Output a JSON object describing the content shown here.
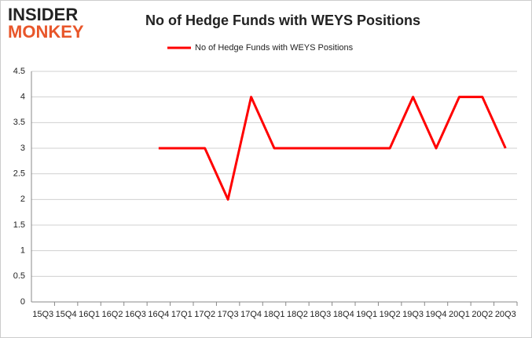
{
  "logo": {
    "line1": "INSIDER",
    "line2": "MONKEY"
  },
  "chart_data": {
    "type": "line",
    "title": "No of Hedge Funds with WEYS Positions",
    "categories": [
      "15Q3",
      "15Q4",
      "16Q1",
      "16Q2",
      "16Q3",
      "16Q4",
      "17Q1",
      "17Q2",
      "17Q3",
      "17Q4",
      "18Q1",
      "18Q2",
      "18Q3",
      "18Q4",
      "19Q1",
      "19Q2",
      "19Q3",
      "19Q4",
      "20Q1",
      "20Q2",
      "20Q3"
    ],
    "series": [
      {
        "name": "No of Hedge Funds with WEYS Positions",
        "color": "#ff0000",
        "values": [
          null,
          null,
          null,
          null,
          null,
          3,
          3,
          3,
          2,
          4,
          3,
          3,
          3,
          3,
          3,
          3,
          4,
          3,
          4,
          4,
          3
        ]
      }
    ],
    "ylim": [
      0,
      4.5
    ],
    "yticks": [
      0,
      0.5,
      1,
      1.5,
      2,
      2.5,
      3,
      3.5,
      4,
      4.5
    ],
    "grid": true,
    "legend": "top"
  }
}
